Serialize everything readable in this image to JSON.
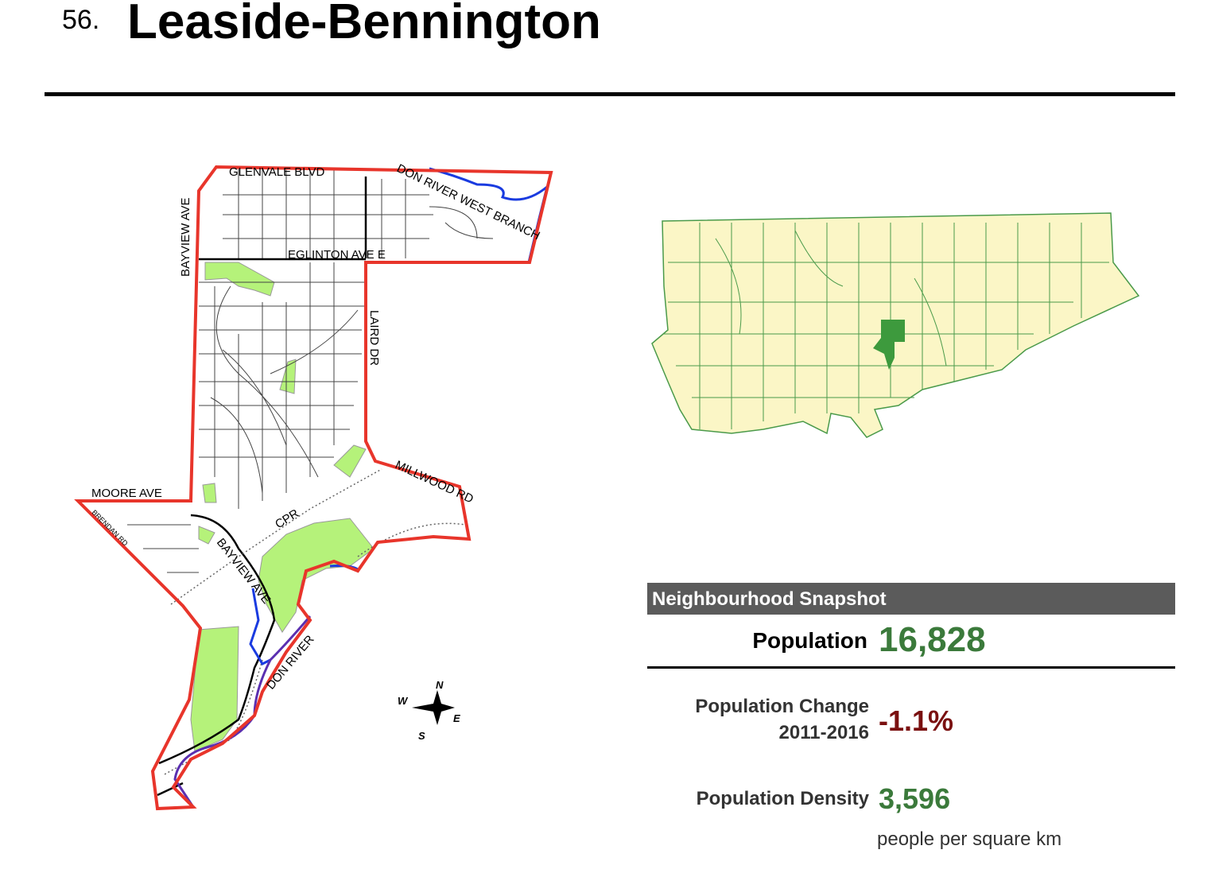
{
  "header": {
    "number": "56.",
    "title": "Leaside-Bennington"
  },
  "map": {
    "streets": [
      "GLENVALE BLVD",
      "DON RIVER WEST BRANCH",
      "BAYVIEW AVE",
      "EGLINTON AVE E",
      "LAIRD DR",
      "MILLWOOD RD",
      "MOORE AVE",
      "BRENDAN RD",
      "CPR",
      "BAYVIEW AVE",
      "DON RIVER"
    ],
    "compass": {
      "north": "N",
      "south": "S",
      "east": "E",
      "west": "W"
    }
  },
  "snapshot": {
    "heading": "Neighbourhood Snapshot",
    "population": {
      "label": "Population",
      "value": "16,828"
    },
    "change": {
      "label": "Population Change",
      "period": "2011-2016",
      "value": "-1.1%"
    },
    "density": {
      "label": "Population Density",
      "value": "3,596",
      "unit": "people per square km"
    }
  }
}
